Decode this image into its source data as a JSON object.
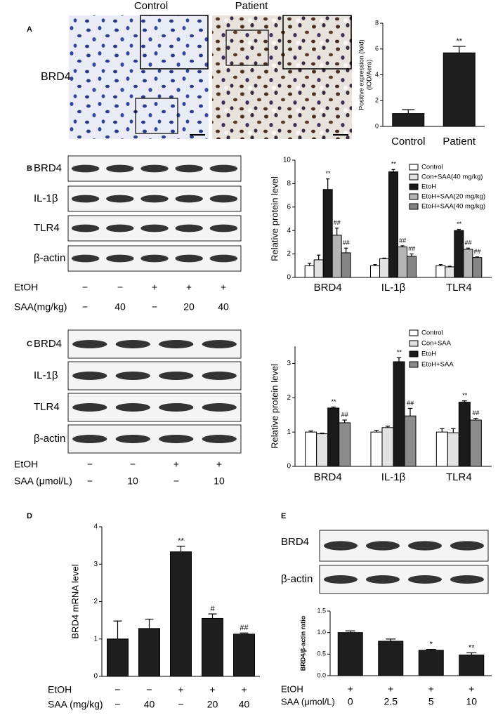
{
  "figure": {
    "panels": [
      {
        "letter": "A",
        "image_titles": [
          "Control",
          "Patient"
        ],
        "image_label": "BRD4"
      },
      {
        "letter": "B",
        "blot_labels": [
          "BRD4",
          "IL-1β",
          "TLR4",
          "β-actin"
        ],
        "conditions": [
          {
            "label": "EtOH",
            "values": [
              "−",
              "−",
              "+",
              "+",
              "+"
            ]
          },
          {
            "label": "SAA(mg/kg)",
            "values": [
              "−",
              "40",
              "−",
              "20",
              "40"
            ]
          }
        ]
      },
      {
        "letter": "C",
        "blot_labels": [
          "BRD4",
          "IL-1β",
          "TLR4",
          "β-actin"
        ],
        "conditions": [
          {
            "label": "EtOH",
            "values": [
              "−",
              "−",
              "+",
              "+"
            ]
          },
          {
            "label": "SAA (μmol/L)",
            "values": [
              "−",
              "10",
              "−",
              "10"
            ]
          }
        ]
      },
      {
        "letter": "D",
        "conditions": [
          {
            "label": "EtOH",
            "values": [
              "−",
              "−",
              "+",
              "+",
              "+"
            ]
          },
          {
            "label": "SAA (mg/kg)",
            "values": [
              "−",
              "40",
              "−",
              "20",
              "40"
            ]
          }
        ]
      },
      {
        "letter": "E",
        "blot_labels": [
          "BRD4",
          "β-actin"
        ],
        "conditions": [
          {
            "label": "EtOH",
            "values": [
              "+",
              "+",
              "+",
              "+"
            ]
          },
          {
            "label": "SAA (μmol/L)",
            "values": [
              "0",
              "2.5",
              "5",
              "10"
            ]
          }
        ]
      }
    ]
  },
  "chart_data": [
    {
      "type": "bar",
      "ylabel": "Positive expression (fold)",
      "ylabel2": "(IOD/Aera)",
      "categories": [
        "Control",
        "Patient"
      ],
      "series": [
        {
          "color": "#1e1e1e",
          "values": [
            1.0,
            5.7
          ],
          "errors": [
            0.3,
            0.5
          ]
        }
      ],
      "ylim": [
        0,
        8
      ],
      "yticks": [
        0,
        2,
        4,
        6,
        8
      ],
      "annotations": [
        {
          "series": 0,
          "index": 1,
          "text": "**"
        }
      ]
    },
    {
      "type": "bar",
      "ylabel": "Relative protein level",
      "categories": [
        "BRD4",
        "IL-1β",
        "TLR4"
      ],
      "series": [
        {
          "name": "Control",
          "color": "#ffffff",
          "values": [
            1.0,
            1.0,
            1.0
          ],
          "errors": [
            0.2,
            0.1,
            0.1
          ]
        },
        {
          "name": "Con+SAA(40 mg/kg)",
          "color": "#e2e2e2",
          "values": [
            1.5,
            1.6,
            0.9
          ],
          "errors": [
            0.4,
            0.05,
            0.05
          ]
        },
        {
          "name": "EtoH",
          "color": "#1a1a1a",
          "values": [
            7.5,
            9.0,
            4.0
          ],
          "errors": [
            0.9,
            0.2,
            0.1
          ]
        },
        {
          "name": "EtoH+SAA(20 mg/kg)",
          "color": "#b4b4b4",
          "values": [
            3.6,
            2.6,
            2.4
          ],
          "errors": [
            0.6,
            0.1,
            0.1
          ]
        },
        {
          "name": "EtoH+SAA(40 mg/kg)",
          "color": "#858585",
          "values": [
            2.1,
            1.8,
            1.7
          ],
          "errors": [
            0.4,
            0.2,
            0.05
          ]
        }
      ],
      "ylim": [
        0,
        10
      ],
      "yticks": [
        0,
        2,
        4,
        6,
        8,
        10
      ],
      "annotations": [
        {
          "series": 2,
          "index": 0,
          "text": "**"
        },
        {
          "series": 3,
          "index": 0,
          "text": "##"
        },
        {
          "series": 4,
          "index": 0,
          "text": "##"
        },
        {
          "series": 2,
          "index": 1,
          "text": "**"
        },
        {
          "series": 3,
          "index": 1,
          "text": "##"
        },
        {
          "series": 4,
          "index": 1,
          "text": "##"
        },
        {
          "series": 2,
          "index": 2,
          "text": "**"
        },
        {
          "series": 3,
          "index": 2,
          "text": "##"
        },
        {
          "series": 4,
          "index": 2,
          "text": "##"
        }
      ]
    },
    {
      "type": "bar",
      "ylabel": "Relative protein level",
      "categories": [
        "BRD4",
        "IL-1β",
        "TLR4"
      ],
      "series": [
        {
          "name": "Control",
          "color": "#ffffff",
          "values": [
            1.0,
            1.0,
            1.0
          ],
          "errors": [
            0.03,
            0.05,
            0.1
          ]
        },
        {
          "name": "Con+SAA",
          "color": "#e2e2e2",
          "values": [
            0.95,
            1.13,
            0.98
          ],
          "errors": [
            0.02,
            0.04,
            0.12
          ]
        },
        {
          "name": "EtoH",
          "color": "#1a1a1a",
          "values": [
            1.7,
            3.05,
            1.87
          ],
          "errors": [
            0.03,
            0.12,
            0.04
          ]
        },
        {
          "name": "EtoH+SAA",
          "color": "#8c8c8c",
          "values": [
            1.27,
            1.47,
            1.35
          ],
          "errors": [
            0.08,
            0.22,
            0.05
          ]
        }
      ],
      "ylim": [
        0,
        3.5
      ],
      "yticks": [
        0,
        1,
        2,
        3
      ],
      "annotations": [
        {
          "series": 2,
          "index": 0,
          "text": "**"
        },
        {
          "series": 3,
          "index": 0,
          "text": "##"
        },
        {
          "series": 2,
          "index": 1,
          "text": "**"
        },
        {
          "series": 3,
          "index": 1,
          "text": "##"
        },
        {
          "series": 2,
          "index": 2,
          "text": "**"
        },
        {
          "series": 3,
          "index": 2,
          "text": "##"
        }
      ]
    },
    {
      "type": "bar",
      "ylabel": "BRD4 mRNA level",
      "series": [
        {
          "color": "#1e1e1e",
          "values": [
            1.0,
            1.28,
            3.33,
            1.55,
            1.13
          ],
          "errors": [
            0.48,
            0.25,
            0.15,
            0.12,
            0.03
          ]
        }
      ],
      "ylim": [
        0,
        4
      ],
      "yticks": [
        0,
        1,
        2,
        3,
        4
      ],
      "annotations": [
        {
          "series": 0,
          "index": 2,
          "text": "**"
        },
        {
          "series": 0,
          "index": 3,
          "text": "#"
        },
        {
          "series": 0,
          "index": 4,
          "text": "##"
        }
      ]
    },
    {
      "type": "bar",
      "ylabel": "BRD4/β-actin ratio",
      "series": [
        {
          "color": "#1e1e1e",
          "values": [
            1.0,
            0.8,
            0.59,
            0.48
          ],
          "errors": [
            0.04,
            0.05,
            0.02,
            0.05
          ]
        }
      ],
      "ylim": [
        0,
        1.5
      ],
      "yticks": [
        {
          "value": 0,
          "label": "0.0"
        },
        {
          "value": 0.5,
          "label": "0.5"
        },
        {
          "value": 1,
          "label": "1.0"
        },
        {
          "value": 1.5,
          "label": "1.5"
        }
      ],
      "annotations": [
        {
          "series": 0,
          "index": 2,
          "text": "*"
        },
        {
          "series": 0,
          "index": 3,
          "text": "**"
        }
      ]
    }
  ]
}
